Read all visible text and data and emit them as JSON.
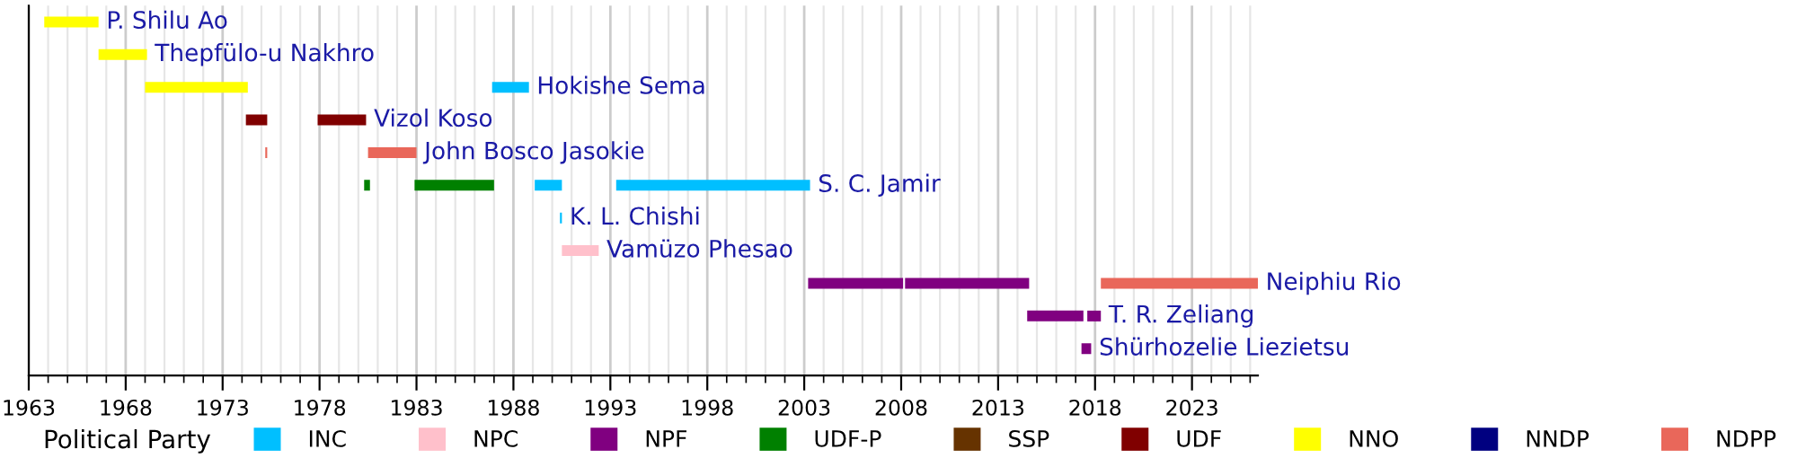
{
  "chart_data": {
    "type": "bar",
    "orientation": "horizontal",
    "legend_title": "Political Party",
    "legend": "bottom",
    "grid": "x",
    "categories": [
      null,
      null,
      null,
      null,
      null,
      null,
      null,
      null,
      null,
      null,
      null
    ],
    "annotations": [
      "P. Shilu Ao",
      "Thepfülo-u Nakhro",
      "Hokishe Sema",
      "Vizol Koso",
      "John Bosco Jasokie",
      "S. C. Jamir",
      "K. L. Chishi",
      "Vamüzo Phesao",
      "Neiphiu Rio",
      "T. R. Zeliang",
      "Shürhozelie Liezietsu"
    ],
    "xlim": [
      1963,
      2026.4
    ],
    "xticks": [
      1963,
      1968,
      1973,
      1978,
      1983,
      1988,
      1993,
      1998,
      2003,
      2008,
      2013,
      2018,
      2023
    ],
    "series": [
      {
        "name": "INC",
        "color": "#00bfff",
        "base": [
          null,
          null,
          1986.9,
          null,
          null,
          1989.1,
          1990.4,
          null,
          null,
          null,
          null
        ],
        "values": [
          null,
          null,
          1.9,
          null,
          null,
          1.4,
          0.1,
          null,
          null,
          null,
          null
        ]
      },
      {
        "name": "NPC",
        "color": "#ffc0cb",
        "base": [
          null,
          null,
          null,
          null,
          null,
          null,
          null,
          1990.5,
          null,
          null,
          null
        ],
        "values": [
          null,
          null,
          null,
          null,
          null,
          null,
          null,
          1.9,
          null,
          null,
          null
        ]
      },
      {
        "name": "NPF",
        "color": "#800080",
        "base": [
          null,
          null,
          null,
          null,
          null,
          null,
          null,
          null,
          2003.2,
          2014.5,
          2017.3
        ],
        "values": [
          null,
          null,
          null,
          null,
          null,
          null,
          null,
          null,
          4.9,
          2.9,
          0.5
        ]
      },
      {
        "name": "UDF-P",
        "color": "#008000",
        "base": [
          null,
          null,
          null,
          null,
          null,
          1980.3,
          null,
          null,
          null,
          null,
          null
        ],
        "values": [
          null,
          null,
          null,
          null,
          null,
          0.3,
          null,
          null,
          null,
          null,
          null
        ]
      },
      {
        "name": "SSP",
        "color": "#663300",
        "base": [
          null,
          null,
          null,
          null,
          null,
          null,
          null,
          null,
          null,
          null,
          null
        ],
        "values": [
          null,
          null,
          null,
          null,
          null,
          null,
          null,
          null,
          null,
          null,
          null
        ]
      },
      {
        "name": "UDF",
        "color": "#800000",
        "base": [
          null,
          null,
          null,
          1974.2,
          null,
          null,
          null,
          null,
          null,
          null,
          null
        ],
        "values": [
          null,
          null,
          null,
          1.1,
          null,
          null,
          null,
          null,
          null,
          null,
          null
        ]
      },
      {
        "name": "NNO",
        "color": "#ffff00",
        "base": [
          1963.8,
          1966.6,
          1969.0,
          null,
          null,
          null,
          null,
          null,
          null,
          null,
          null
        ],
        "values": [
          2.8,
          2.5,
          5.3,
          null,
          null,
          null,
          null,
          null,
          null,
          null,
          null
        ]
      },
      {
        "name": "NNDP",
        "color": "#000080",
        "base": [
          null,
          null,
          null,
          null,
          null,
          null,
          null,
          null,
          null,
          null,
          null
        ],
        "values": [
          null,
          null,
          null,
          null,
          null,
          null,
          null,
          null,
          null,
          null,
          null
        ]
      },
      {
        "name": "NDPP",
        "color": "#e9675a",
        "base": [
          null,
          null,
          null,
          null,
          1980.5,
          null,
          null,
          null,
          2018.3,
          null,
          null
        ],
        "values": [
          null,
          null,
          null,
          null,
          2.5,
          null,
          null,
          null,
          8.1,
          null,
          null
        ]
      },
      {
        "color": "#00bfff",
        "base": [
          null,
          null,
          null,
          null,
          null,
          1993.3,
          null,
          null,
          null,
          null,
          null
        ],
        "values": [
          null,
          null,
          null,
          null,
          null,
          10.0,
          null,
          null,
          null,
          null,
          null
        ]
      },
      {
        "color": "#008000",
        "base": [
          null,
          null,
          null,
          null,
          null,
          1982.9,
          null,
          null,
          null,
          null,
          null
        ],
        "values": [
          null,
          null,
          null,
          null,
          null,
          4.1,
          null,
          null,
          null,
          null,
          null
        ]
      },
      {
        "color": "#800000",
        "base": [
          null,
          null,
          null,
          1977.9,
          null,
          null,
          null,
          null,
          null,
          null,
          null
        ],
        "values": [
          null,
          null,
          null,
          2.5,
          null,
          null,
          null,
          null,
          null,
          null,
          null
        ]
      },
      {
        "color": "#800080",
        "base": [
          null,
          null,
          null,
          null,
          null,
          null,
          null,
          null,
          2008.2,
          2017.6,
          null
        ],
        "values": [
          null,
          null,
          null,
          null,
          null,
          null,
          null,
          null,
          6.4,
          0.7,
          null
        ]
      },
      {
        "color": "#e9675a",
        "base": [
          null,
          null,
          null,
          null,
          1975.2,
          null,
          null,
          null,
          null,
          null,
          null
        ],
        "values": [
          null,
          null,
          null,
          null,
          0.1,
          null,
          null,
          null,
          null,
          null,
          null
        ]
      }
    ]
  }
}
